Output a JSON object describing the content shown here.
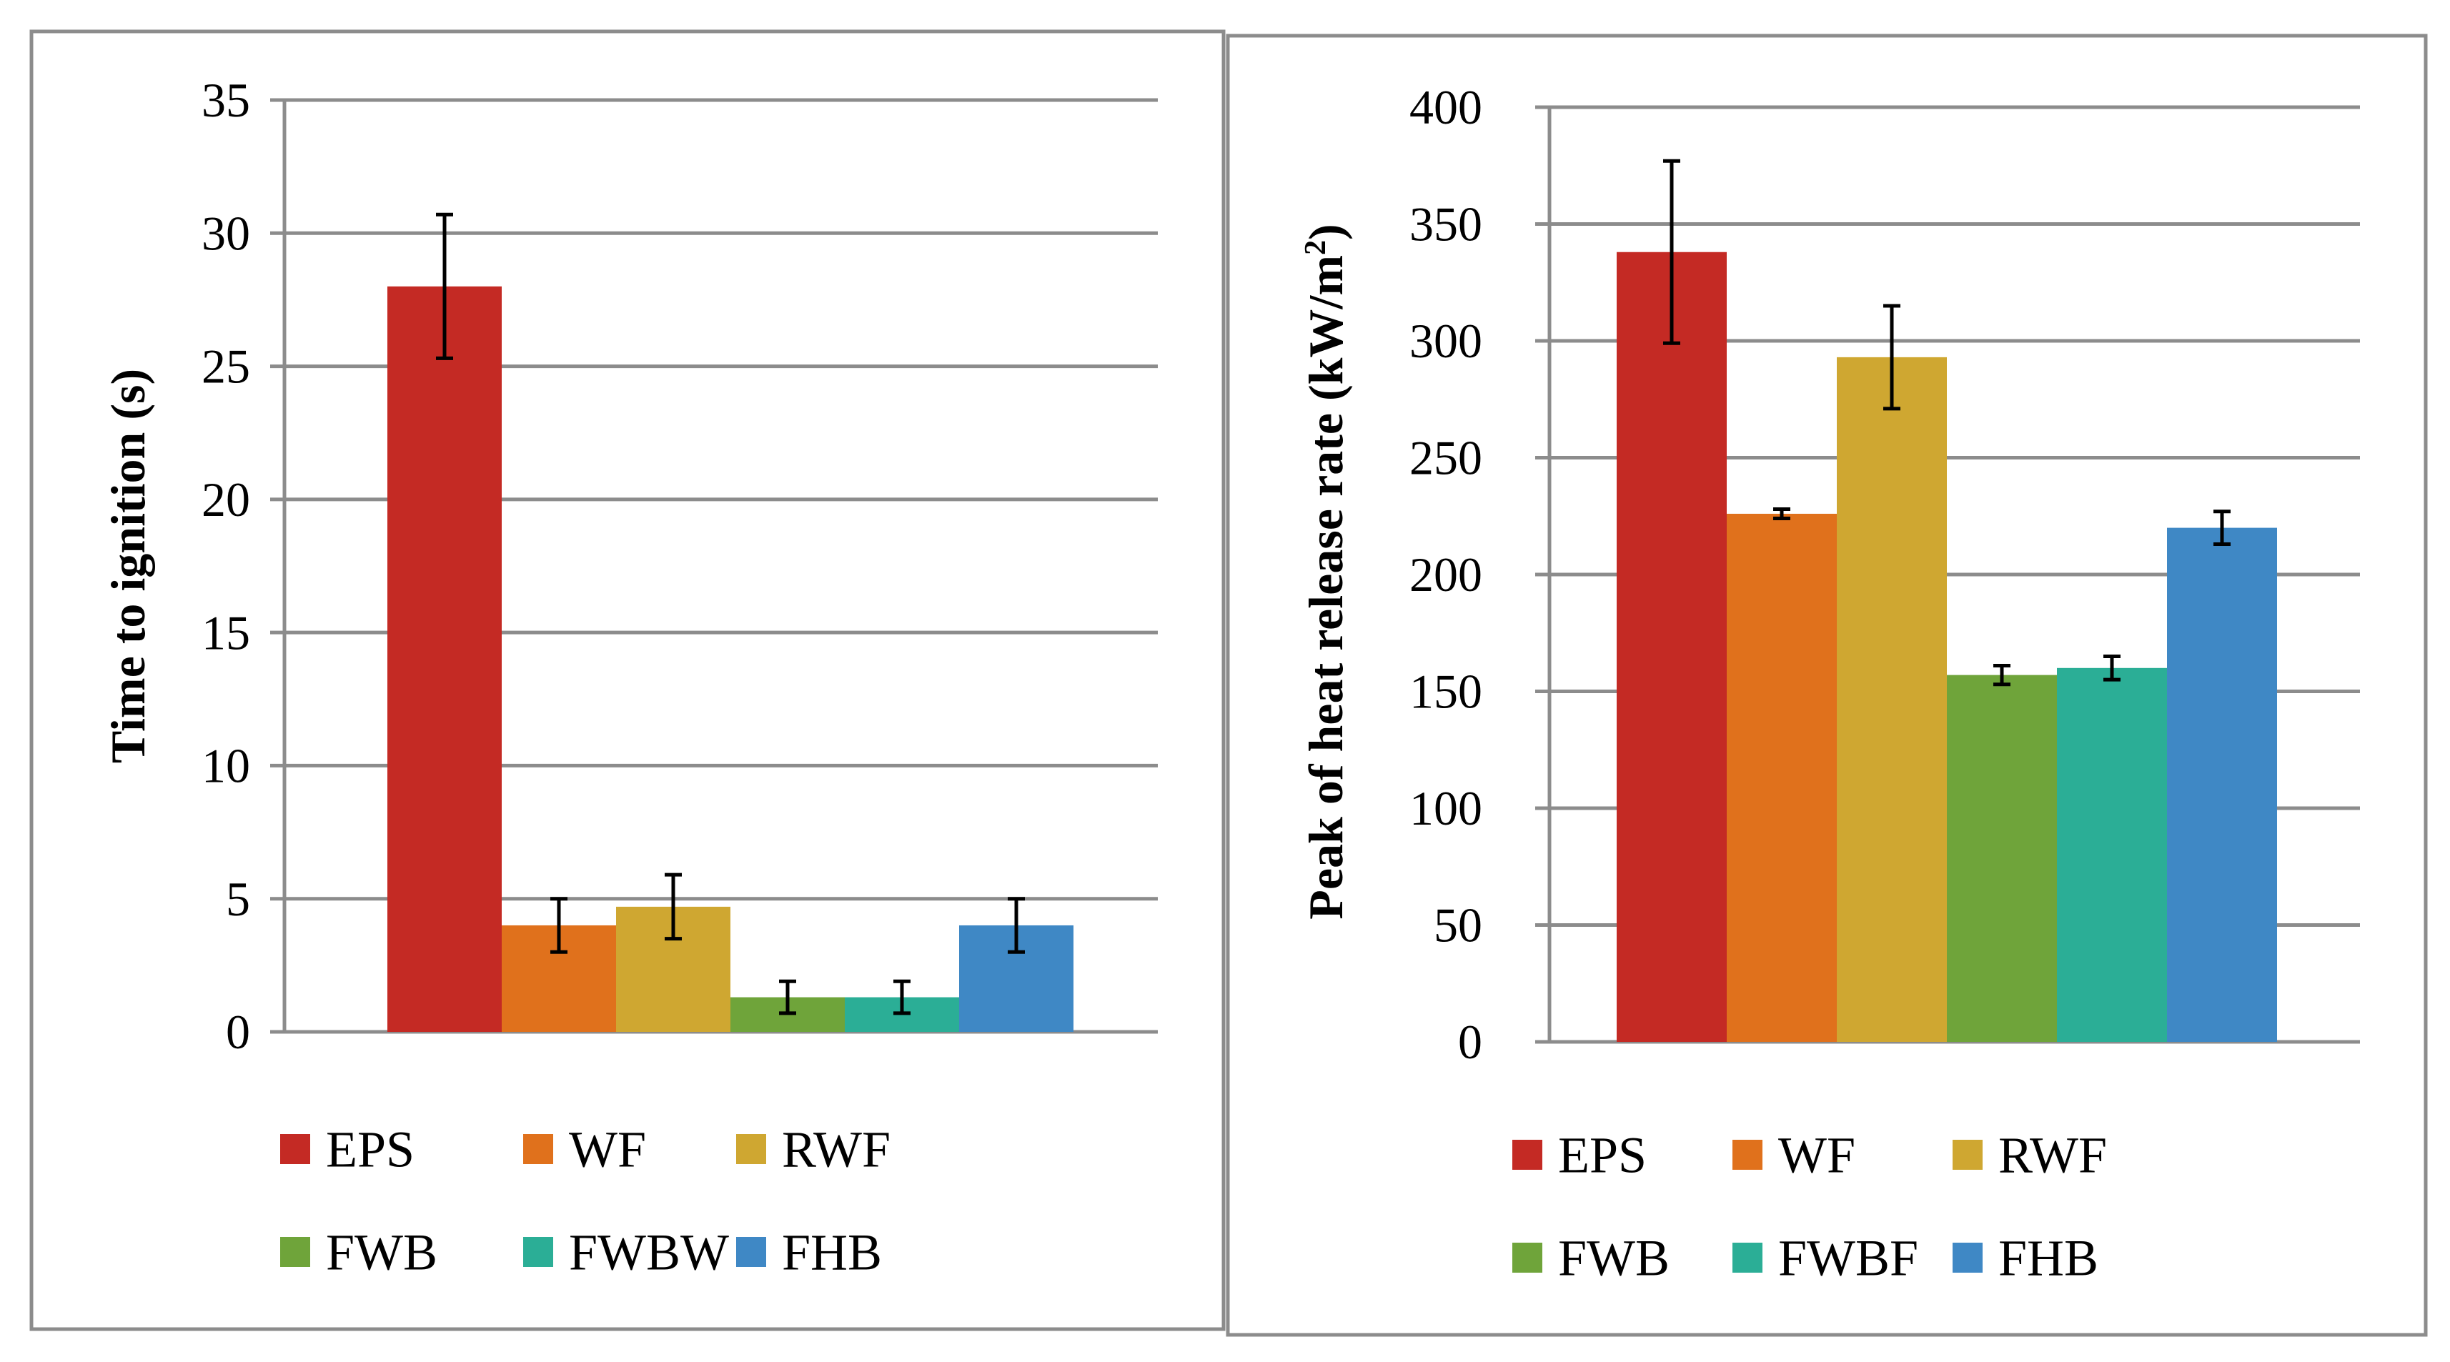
{
  "colors": {
    "EPS": "#C42A24",
    "WF": "#E0711C",
    "RWF": "#CFA731",
    "FWB": "#6FA43A",
    "FWBW": "#2BAE96",
    "FWBF": "#2BAE96",
    "FHB": "#3F88C5",
    "grid": "#8C8C8C",
    "axis": "#8C8C8C",
    "error_bar": "#000000",
    "frame": "#8C8C8C",
    "text": "#000000"
  },
  "chart_data": [
    {
      "type": "bar",
      "title": "",
      "xlabel": "",
      "ylabel": "Time to ignition (s)",
      "ylim": [
        0,
        35
      ],
      "yticks": [
        "0",
        "5",
        "10",
        "15",
        "20",
        "25",
        "30",
        "35"
      ],
      "grid": true,
      "legend_position": "bottom",
      "series": [
        {
          "name": "EPS",
          "value": 28,
          "error": 2.7
        },
        {
          "name": "WF",
          "value": 4,
          "error": 1
        },
        {
          "name": "RWF",
          "value": 4.7,
          "error": 1.2
        },
        {
          "name": "FWB",
          "value": 1.3,
          "error": 0.6
        },
        {
          "name": "FWBW",
          "value": 1.3,
          "error": 0.6
        },
        {
          "name": "FHB",
          "value": 4,
          "error": 1
        }
      ]
    },
    {
      "type": "bar",
      "title": "",
      "xlabel": "",
      "ylabel": "Peak of heat release rate (kW/m²)",
      "ylabel_main": "Peak of heat release rate (kW/m",
      "ylabel_sup": "2",
      "ylabel_end": ")",
      "ylim": [
        0,
        400
      ],
      "yticks": [
        "0",
        "50",
        "100",
        "150",
        "200",
        "250",
        "300",
        "350",
        "400"
      ],
      "grid": true,
      "legend_position": "bottom",
      "series": [
        {
          "name": "EPS",
          "value": 338,
          "error": 39
        },
        {
          "name": "WF",
          "value": 226,
          "error": 2
        },
        {
          "name": "RWF",
          "value": 293,
          "error": 22
        },
        {
          "name": "FWB",
          "value": 157,
          "error": 4
        },
        {
          "name": "FWBF",
          "value": 160,
          "error": 5
        },
        {
          "name": "FHB",
          "value": 220,
          "error": 7
        }
      ]
    }
  ]
}
